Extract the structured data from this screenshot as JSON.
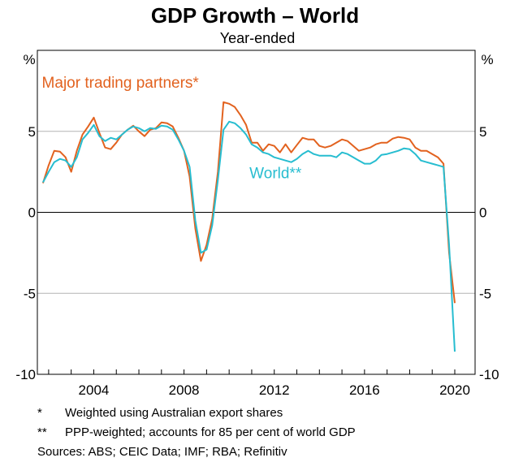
{
  "chart_data": {
    "type": "line",
    "title": "GDP Growth – World",
    "subtitle": "Year-ended",
    "y_unit_left": "%",
    "y_unit_right": "%",
    "xlabel": "",
    "ylabel": "%",
    "xlim": [
      2001.5,
      2020.9
    ],
    "ylim": [
      -10,
      10
    ],
    "y_ticks": [
      {
        "value": 5,
        "label": "5"
      },
      {
        "value": 0,
        "label": "0"
      },
      {
        "value": -5,
        "label": "-5"
      },
      {
        "value": -10,
        "label": "-10"
      }
    ],
    "x_ticks": [
      {
        "value": 2004,
        "label": "2004"
      },
      {
        "value": 2008,
        "label": "2008"
      },
      {
        "value": 2012,
        "label": "2012"
      },
      {
        "value": 2016,
        "label": "2016"
      },
      {
        "value": 2020,
        "label": "2020"
      }
    ],
    "gridlines": "horizontal",
    "series": [
      {
        "name": "Major trading partners*",
        "color": "#e2621f",
        "label_x": 2001.7,
        "label_y": 7.7,
        "points": [
          [
            2001.75,
            1.8
          ],
          [
            2002.0,
            2.9
          ],
          [
            2002.25,
            3.8
          ],
          [
            2002.5,
            3.75
          ],
          [
            2002.75,
            3.4
          ],
          [
            2003.0,
            2.5
          ],
          [
            2003.25,
            3.8
          ],
          [
            2003.5,
            4.8
          ],
          [
            2003.75,
            5.3
          ],
          [
            2004.0,
            5.85
          ],
          [
            2004.25,
            4.9
          ],
          [
            2004.5,
            4.0
          ],
          [
            2004.75,
            3.9
          ],
          [
            2005.0,
            4.3
          ],
          [
            2005.25,
            4.8
          ],
          [
            2005.5,
            5.1
          ],
          [
            2005.75,
            5.35
          ],
          [
            2006.0,
            5.0
          ],
          [
            2006.25,
            4.7
          ],
          [
            2006.5,
            5.1
          ],
          [
            2006.75,
            5.2
          ],
          [
            2007.0,
            5.55
          ],
          [
            2007.25,
            5.5
          ],
          [
            2007.5,
            5.3
          ],
          [
            2007.75,
            4.6
          ],
          [
            2008.0,
            3.8
          ],
          [
            2008.25,
            2.2
          ],
          [
            2008.5,
            -1.0
          ],
          [
            2008.75,
            -3.0
          ],
          [
            2009.0,
            -2.0
          ],
          [
            2009.25,
            -0.4
          ],
          [
            2009.5,
            2.5
          ],
          [
            2009.75,
            6.8
          ],
          [
            2010.0,
            6.7
          ],
          [
            2010.25,
            6.5
          ],
          [
            2010.5,
            6.0
          ],
          [
            2010.75,
            5.4
          ],
          [
            2011.0,
            4.3
          ],
          [
            2011.25,
            4.3
          ],
          [
            2011.5,
            3.8
          ],
          [
            2011.75,
            4.2
          ],
          [
            2012.0,
            4.1
          ],
          [
            2012.25,
            3.7
          ],
          [
            2012.5,
            4.2
          ],
          [
            2012.75,
            3.7
          ],
          [
            2013.0,
            4.15
          ],
          [
            2013.25,
            4.6
          ],
          [
            2013.5,
            4.5
          ],
          [
            2013.75,
            4.5
          ],
          [
            2014.0,
            4.1
          ],
          [
            2014.25,
            4.0
          ],
          [
            2014.5,
            4.1
          ],
          [
            2014.75,
            4.3
          ],
          [
            2015.0,
            4.5
          ],
          [
            2015.25,
            4.4
          ],
          [
            2015.5,
            4.1
          ],
          [
            2015.75,
            3.8
          ],
          [
            2016.0,
            3.9
          ],
          [
            2016.25,
            4.0
          ],
          [
            2016.5,
            4.2
          ],
          [
            2016.75,
            4.3
          ],
          [
            2017.0,
            4.3
          ],
          [
            2017.25,
            4.55
          ],
          [
            2017.5,
            4.65
          ],
          [
            2017.75,
            4.6
          ],
          [
            2018.0,
            4.5
          ],
          [
            2018.25,
            4.0
          ],
          [
            2018.5,
            3.8
          ],
          [
            2018.75,
            3.8
          ],
          [
            2019.0,
            3.6
          ],
          [
            2019.25,
            3.4
          ],
          [
            2019.5,
            3.0
          ],
          [
            2019.75,
            -2.5
          ],
          [
            2020.0,
            -5.6
          ]
        ]
      },
      {
        "name": "World**",
        "color": "#27bdd0",
        "label_x": 2010.9,
        "label_y": 2.1,
        "points": [
          [
            2001.75,
            1.85
          ],
          [
            2002.0,
            2.5
          ],
          [
            2002.25,
            3.1
          ],
          [
            2002.5,
            3.3
          ],
          [
            2002.75,
            3.2
          ],
          [
            2003.0,
            2.8
          ],
          [
            2003.25,
            3.4
          ],
          [
            2003.5,
            4.5
          ],
          [
            2003.75,
            4.9
          ],
          [
            2004.0,
            5.4
          ],
          [
            2004.25,
            4.7
          ],
          [
            2004.5,
            4.4
          ],
          [
            2004.75,
            4.6
          ],
          [
            2005.0,
            4.5
          ],
          [
            2005.25,
            4.8
          ],
          [
            2005.5,
            5.1
          ],
          [
            2005.75,
            5.3
          ],
          [
            2006.0,
            5.2
          ],
          [
            2006.25,
            5.0
          ],
          [
            2006.5,
            5.2
          ],
          [
            2006.75,
            5.15
          ],
          [
            2007.0,
            5.35
          ],
          [
            2007.25,
            5.3
          ],
          [
            2007.5,
            5.1
          ],
          [
            2007.75,
            4.5
          ],
          [
            2008.0,
            3.8
          ],
          [
            2008.25,
            2.8
          ],
          [
            2008.5,
            -0.5
          ],
          [
            2008.75,
            -2.5
          ],
          [
            2009.0,
            -2.3
          ],
          [
            2009.25,
            -0.8
          ],
          [
            2009.5,
            2.0
          ],
          [
            2009.75,
            5.1
          ],
          [
            2010.0,
            5.6
          ],
          [
            2010.25,
            5.5
          ],
          [
            2010.5,
            5.2
          ],
          [
            2010.75,
            4.8
          ],
          [
            2011.0,
            4.2
          ],
          [
            2011.25,
            4.0
          ],
          [
            2011.5,
            3.7
          ],
          [
            2011.75,
            3.6
          ],
          [
            2012.0,
            3.4
          ],
          [
            2012.25,
            3.3
          ],
          [
            2012.5,
            3.2
          ],
          [
            2012.75,
            3.1
          ],
          [
            2013.0,
            3.3
          ],
          [
            2013.25,
            3.6
          ],
          [
            2013.5,
            3.8
          ],
          [
            2013.75,
            3.6
          ],
          [
            2014.0,
            3.5
          ],
          [
            2014.25,
            3.5
          ],
          [
            2014.5,
            3.5
          ],
          [
            2014.75,
            3.4
          ],
          [
            2015.0,
            3.7
          ],
          [
            2015.25,
            3.6
          ],
          [
            2015.5,
            3.4
          ],
          [
            2015.75,
            3.2
          ],
          [
            2016.0,
            3.0
          ],
          [
            2016.25,
            3.0
          ],
          [
            2016.5,
            3.2
          ],
          [
            2016.75,
            3.55
          ],
          [
            2017.0,
            3.6
          ],
          [
            2017.25,
            3.7
          ],
          [
            2017.5,
            3.8
          ],
          [
            2017.75,
            3.95
          ],
          [
            2018.0,
            3.9
          ],
          [
            2018.25,
            3.6
          ],
          [
            2018.5,
            3.2
          ],
          [
            2018.75,
            3.1
          ],
          [
            2019.0,
            3.0
          ],
          [
            2019.25,
            2.9
          ],
          [
            2019.5,
            2.8
          ],
          [
            2019.75,
            -2.0
          ],
          [
            2020.0,
            -8.6
          ]
        ]
      }
    ]
  },
  "footnotes": [
    {
      "mark": "*",
      "text": "Weighted using Australian export shares"
    },
    {
      "mark": "**",
      "text": "PPP-weighted; accounts for 85 per cent of world GDP"
    }
  ],
  "sources": "Sources: ABS; CEIC Data; IMF; RBA; Refinitiv"
}
